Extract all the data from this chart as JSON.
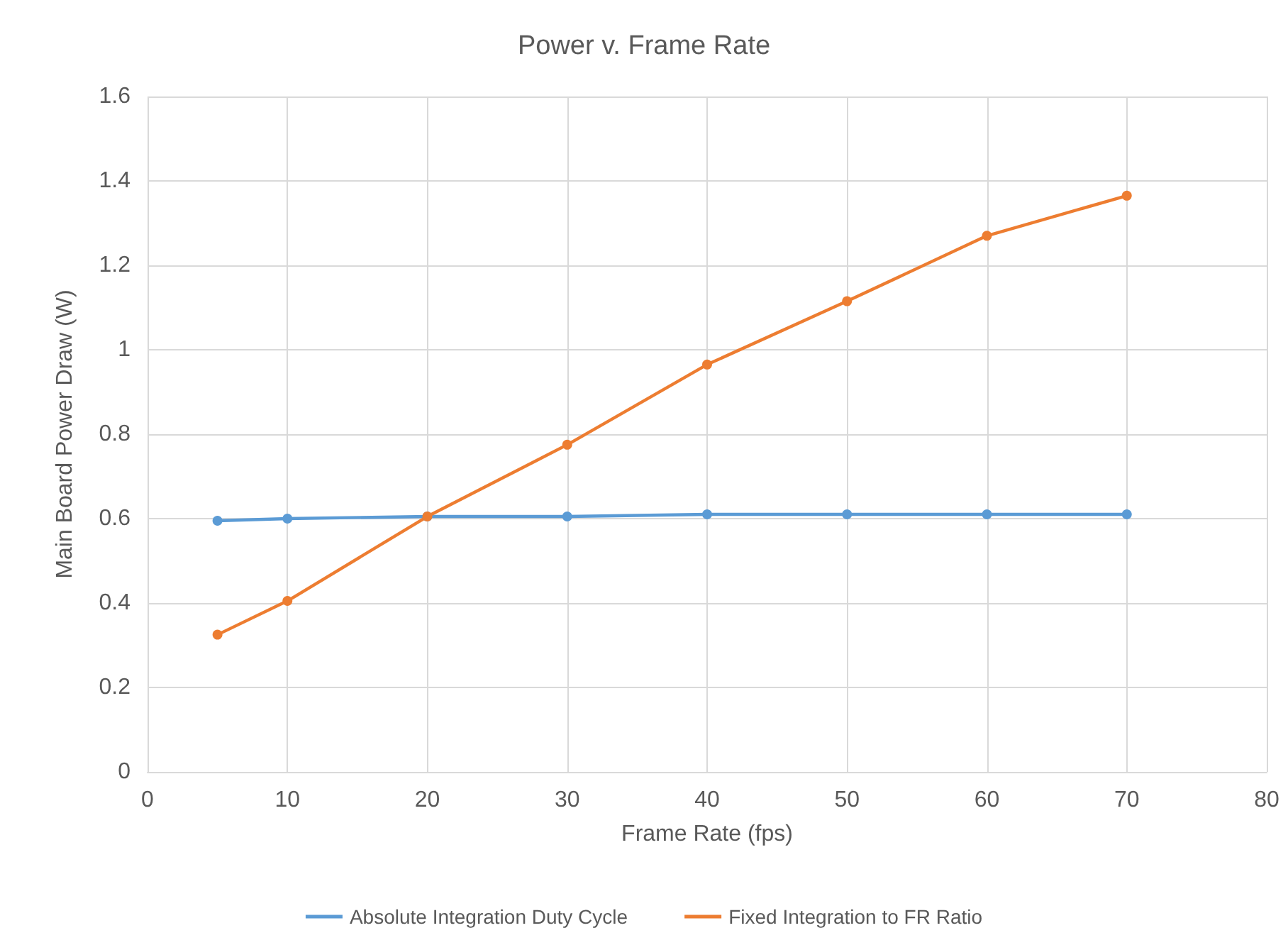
{
  "chart_data": {
    "type": "line",
    "title": "Power v. Frame Rate",
    "xlabel": "Frame Rate (fps)",
    "ylabel": "Main Board Power Draw (W)",
    "x": [
      5,
      10,
      20,
      30,
      40,
      50,
      60,
      70
    ],
    "series": [
      {
        "name": "Absolute Integration Duty Cycle",
        "color": "#5b9bd5",
        "values": [
          0.595,
          0.6,
          0.605,
          0.605,
          0.61,
          0.61,
          0.61,
          0.61
        ]
      },
      {
        "name": "Fixed Integration to FR Ratio",
        "color": "#ed7d31",
        "values": [
          0.325,
          0.405,
          0.605,
          0.775,
          0.965,
          1.115,
          1.27,
          1.365
        ]
      }
    ],
    "xlim": [
      0,
      80
    ],
    "xticks": [
      0,
      10,
      20,
      30,
      40,
      50,
      60,
      70,
      80
    ],
    "ylim": [
      0,
      1.6
    ],
    "yticks": [
      0,
      0.2,
      0.4,
      0.6,
      0.8,
      1,
      1.2,
      1.4,
      1.6
    ],
    "grid": true,
    "legend": "bottom",
    "marker": "circle",
    "line_style": "solid"
  }
}
